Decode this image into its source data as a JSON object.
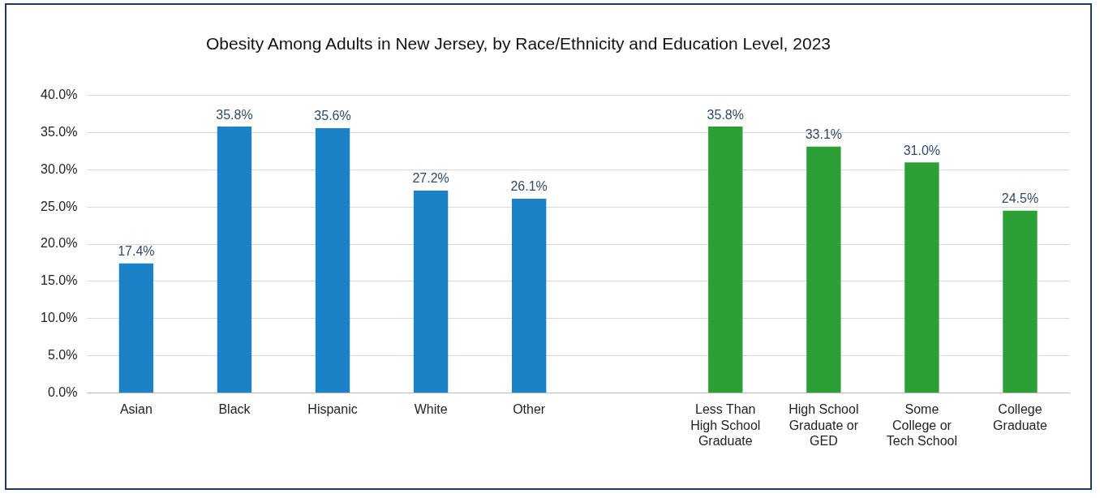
{
  "chart_data": {
    "type": "bar",
    "title": "Obesity Among Adults in New Jersey, by Race/Ethnicity and Education Level, 2023",
    "categories": [
      "Asian",
      "Black",
      "Hispanic",
      "White",
      "Other",
      null,
      "Less Than High School Graduate",
      "High School Graduate or GED",
      "Some College or Tech School",
      "College Graduate"
    ],
    "values": [
      17.4,
      35.8,
      35.6,
      27.2,
      26.1,
      null,
      35.8,
      33.1,
      31.0,
      24.5
    ],
    "value_labels": [
      "17.4%",
      "35.8%",
      "35.6%",
      "27.2%",
      "26.1%",
      null,
      "35.8%",
      "33.1%",
      "31.0%",
      "24.5%"
    ],
    "colors": [
      "#1b82c8",
      "#1b82c8",
      "#1b82c8",
      "#1b82c8",
      "#1b82c8",
      null,
      "#2ca037",
      "#2ca037",
      "#2ca037",
      "#2ca037"
    ],
    "ylim": [
      0,
      40
    ],
    "yticks": [
      {
        "value": 0,
        "label": "0.0%"
      },
      {
        "value": 5,
        "label": "5.0%"
      },
      {
        "value": 10,
        "label": "10.0%"
      },
      {
        "value": 15,
        "label": "15.0%"
      },
      {
        "value": 20,
        "label": "20.0%"
      },
      {
        "value": 25,
        "label": "25.0%"
      },
      {
        "value": 30,
        "label": "30.0%"
      },
      {
        "value": 35,
        "label": "35.0%"
      },
      {
        "value": 40,
        "label": "40.0%"
      }
    ],
    "grid": "y",
    "legend": false
  }
}
